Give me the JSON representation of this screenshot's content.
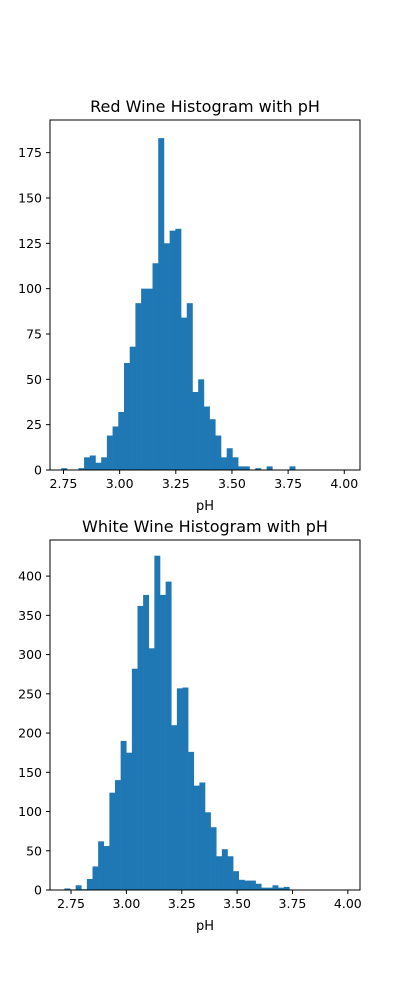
{
  "chart_data": [
    {
      "type": "bar",
      "title": "Red Wine Histogram with pH",
      "xlabel": "pH",
      "ylabel": "",
      "xlim": [
        2.69,
        4.07
      ],
      "ylim": [
        0,
        193
      ],
      "xticks": [
        2.75,
        3.0,
        3.25,
        3.5,
        3.75,
        4.0
      ],
      "xtick_labels": [
        "2.75",
        "3.00",
        "3.25",
        "3.50",
        "3.75",
        "4.00"
      ],
      "yticks": [
        0,
        25,
        50,
        75,
        100,
        125,
        150,
        175
      ],
      "ytick_labels": [
        "0",
        "25",
        "50",
        "75",
        "100",
        "125",
        "150",
        "175"
      ],
      "color": "#1f77b4",
      "bin_start": 2.74,
      "bin_width": 0.0254,
      "counts": [
        1,
        0,
        0,
        1,
        7,
        8,
        4,
        7,
        19,
        24,
        32,
        59,
        68,
        92,
        100,
        100,
        114,
        183,
        125,
        132,
        133,
        84,
        92,
        43,
        50,
        35,
        28,
        19,
        7,
        12,
        7,
        2,
        2,
        0,
        1,
        0,
        2,
        0,
        0,
        0,
        2
      ]
    },
    {
      "type": "bar",
      "title": "White Wine Histogram with pH",
      "xlabel": "pH",
      "ylabel": "",
      "xlim": [
        2.655,
        4.055
      ],
      "ylim": [
        0,
        446
      ],
      "xticks": [
        2.75,
        3.0,
        3.25,
        3.5,
        3.75,
        4.0
      ],
      "xtick_labels": [
        "2.75",
        "3.00",
        "3.25",
        "3.50",
        "3.75",
        "4.00"
      ],
      "yticks": [
        0,
        50,
        100,
        150,
        200,
        250,
        300,
        350,
        400
      ],
      "ytick_labels": [
        "0",
        "50",
        "100",
        "150",
        "200",
        "250",
        "300",
        "350",
        "400"
      ],
      "color": "#1f77b4",
      "bin_start": 2.72,
      "bin_width": 0.0254,
      "counts": [
        2,
        0,
        6,
        1,
        14,
        30,
        62,
        56,
        124,
        140,
        190,
        175,
        282,
        362,
        376,
        308,
        426,
        376,
        393,
        210,
        257,
        258,
        176,
        133,
        137,
        99,
        80,
        43,
        52,
        43,
        24,
        13,
        12,
        12,
        8,
        3,
        3,
        6,
        3,
        4,
        0,
        0,
        0,
        0,
        0,
        0,
        0,
        0,
        0,
        0,
        0,
        0
      ]
    }
  ]
}
